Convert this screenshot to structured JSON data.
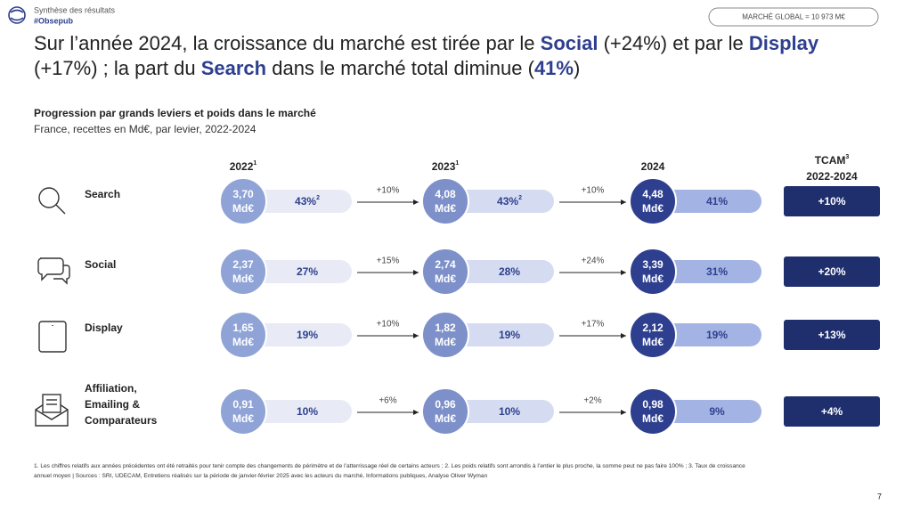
{
  "header": {
    "section": "Synthèse des résultats",
    "tag": "#Obsepub",
    "badge": "MARCHÉ GLOBAL = 10 973 M€"
  },
  "title": {
    "lines": [
      [
        "Sur l’année 2024, la croissance du marché est tirée par le ",
        "Social",
        " (+24%) et par le ",
        "Display"
      ],
      [
        "(+17%) ; la part du ",
        "Search",
        " dans le marché total diminue (",
        "41%",
        ")"
      ]
    ]
  },
  "subtitle": {
    "title": "Progression par grands leviers et poids dans le marché",
    "text": "France, recettes en Md€, par levier, 2022-2024"
  },
  "columns": [
    {
      "year": "2022",
      "note": "1"
    },
    {
      "year": "2023",
      "note": "1"
    },
    {
      "year": "2024"
    }
  ],
  "tcam_header": {
    "title": "TCAM",
    "note": "3",
    "period": "2022-2024"
  },
  "unit": "Md€",
  "rows": [
    {
      "label_lines": [
        "Search"
      ],
      "cells": [
        {
          "amount": "3,70",
          "share": "43%",
          "share_note": "2"
        },
        {
          "amount": "4,08",
          "share": "43%",
          "share_note": "2"
        },
        {
          "amount": "4,48",
          "share": "41%"
        }
      ],
      "growth": [
        "+10%",
        "+10%"
      ],
      "tcam": "+10%"
    },
    {
      "label_lines": [
        "Social"
      ],
      "cells": [
        {
          "amount": "2,37",
          "share": "27%"
        },
        {
          "amount": "2,74",
          "share": "28%"
        },
        {
          "amount": "3,39",
          "share": "31%"
        }
      ],
      "growth": [
        "+15%",
        "+24%"
      ],
      "tcam": "+20%"
    },
    {
      "label_lines": [
        "Display"
      ],
      "cells": [
        {
          "amount": "1,65",
          "share": "19%"
        },
        {
          "amount": "1,82",
          "share": "19%"
        },
        {
          "amount": "2,12",
          "share": "19%"
        }
      ],
      "growth": [
        "+10%",
        "+17%"
      ],
      "tcam": "+13%"
    },
    {
      "label_lines": [
        "Affiliation,",
        "Emailing &",
        "Comparateurs"
      ],
      "cells": [
        {
          "amount": "0,91",
          "share": "10%"
        },
        {
          "amount": "0,96",
          "share": "10%"
        },
        {
          "amount": "0,98",
          "share": "9%"
        }
      ],
      "growth": [
        "+6%",
        "+2%"
      ],
      "tcam": "+4%"
    }
  ],
  "footnote": {
    "lines": [
      "1. Les chiffres relatifs aux années précédentes ont été retraités pour tenir compte des changements de périmètre et de l’atterrissage réel de certains acteurs ; 2. Les poids relatifs sont arrondis à l’entier le plus proche, la somme peut ne pas faire 100% ; 3. Taux de croissance",
      "annuel moyen | Sources : SRI, UDECAM, Entretiens réalisés sur la période de janvier-février 2025 avec les acteurs du marché, Informations publiques, Analyse Oliver Wyman"
    ]
  },
  "page_number": "7"
}
